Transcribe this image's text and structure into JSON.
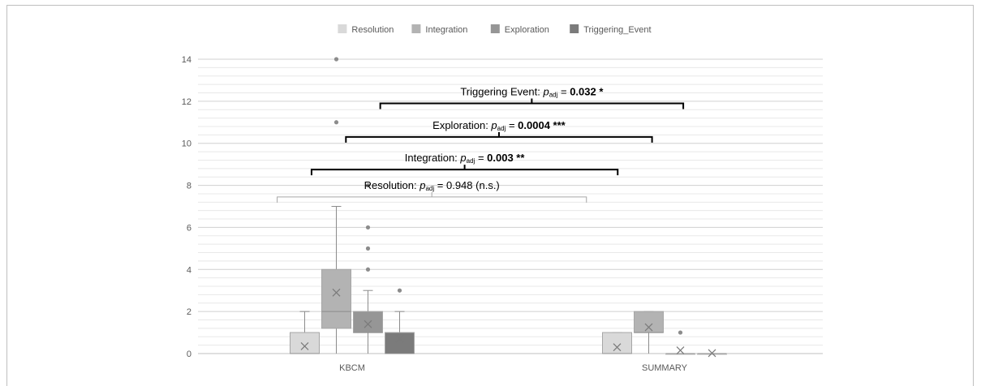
{
  "chart_data": {
    "type": "boxplot",
    "categories": [
      "KBCM",
      "SUMMARY"
    ],
    "ylim": [
      0,
      14
    ],
    "yticks": [
      0,
      2,
      4,
      6,
      8,
      10,
      12,
      14
    ],
    "minor_step": 0.4,
    "grid": true,
    "legend_position": "top",
    "series": [
      {
        "name": "Resolution",
        "color": "#d9d9d9",
        "boxes": [
          {
            "category": "KBCM",
            "min": 0,
            "q1": 0,
            "median": 0,
            "q3": 1,
            "max": 2,
            "mean": 0.35,
            "outliers": []
          },
          {
            "category": "SUMMARY",
            "min": 0,
            "q1": 0,
            "median": 0,
            "q3": 1,
            "max": 1,
            "mean": 0.3,
            "outliers": []
          }
        ]
      },
      {
        "name": "Integration",
        "color": "#b3b3b3",
        "boxes": [
          {
            "category": "KBCM",
            "min": 0,
            "q1": 1.2,
            "median": 2,
            "q3": 4,
            "max": 7,
            "mean": 2.9,
            "outliers": [
              11,
              14
            ]
          },
          {
            "category": "SUMMARY",
            "min": 0,
            "q1": 1,
            "median": 1,
            "q3": 2,
            "max": 2,
            "mean": 1.25,
            "outliers": []
          }
        ]
      },
      {
        "name": "Exploration",
        "color": "#969696",
        "boxes": [
          {
            "category": "KBCM",
            "min": 0,
            "q1": 1,
            "median": 1,
            "q3": 2,
            "max": 3,
            "mean": 1.4,
            "outliers": [
              4,
              5,
              6,
              8
            ]
          },
          {
            "category": "SUMMARY",
            "min": 0,
            "q1": 0,
            "median": 0,
            "q3": 0,
            "max": 0,
            "mean": 0.15,
            "outliers": [
              1
            ]
          }
        ]
      },
      {
        "name": "Triggering_Event",
        "color": "#7b7b7b",
        "boxes": [
          {
            "category": "KBCM",
            "min": 0,
            "q1": 0,
            "median": 0,
            "q3": 1,
            "max": 2,
            "mean": 0.7,
            "outliers": [
              3
            ]
          },
          {
            "category": "SUMMARY",
            "min": 0,
            "q1": 0,
            "median": 0,
            "q3": 0,
            "max": 0,
            "mean": 0.02,
            "outliers": []
          }
        ]
      }
    ],
    "annotations": [
      {
        "label": "Triggering Event: ",
        "p": "p",
        "sub": "adj",
        "eq": " = ",
        "value": "0.032 *",
        "value_bold": true,
        "suffix": "",
        "bracket_y": 11.9,
        "bracket_x": [
          0.09,
          1.06
        ],
        "bold_bracket": true
      },
      {
        "label": "Exploration: ",
        "p": "p",
        "sub": "adj",
        "eq": " = ",
        "value": "0.0004 ***",
        "value_bold": true,
        "suffix": "",
        "bracket_y": 10.3,
        "bracket_x": [
          -0.02,
          0.96
        ],
        "bold_bracket": true
      },
      {
        "label": "Integration: ",
        "p": "p",
        "sub": "adj",
        "eq": " = ",
        "value": "0.003 **",
        "value_bold": true,
        "suffix": "",
        "bracket_y": 8.75,
        "bracket_x": [
          -0.13,
          0.85
        ],
        "bold_bracket": true
      },
      {
        "label": "Resolution: ",
        "p": "p",
        "sub": "adj",
        "eq": " = ",
        "value": "0.948",
        "value_bold": false,
        "suffix": " (n.s.)",
        "bracket_y": 7.45,
        "bracket_x": [
          -0.24,
          0.75
        ],
        "bold_bracket": false
      }
    ]
  }
}
